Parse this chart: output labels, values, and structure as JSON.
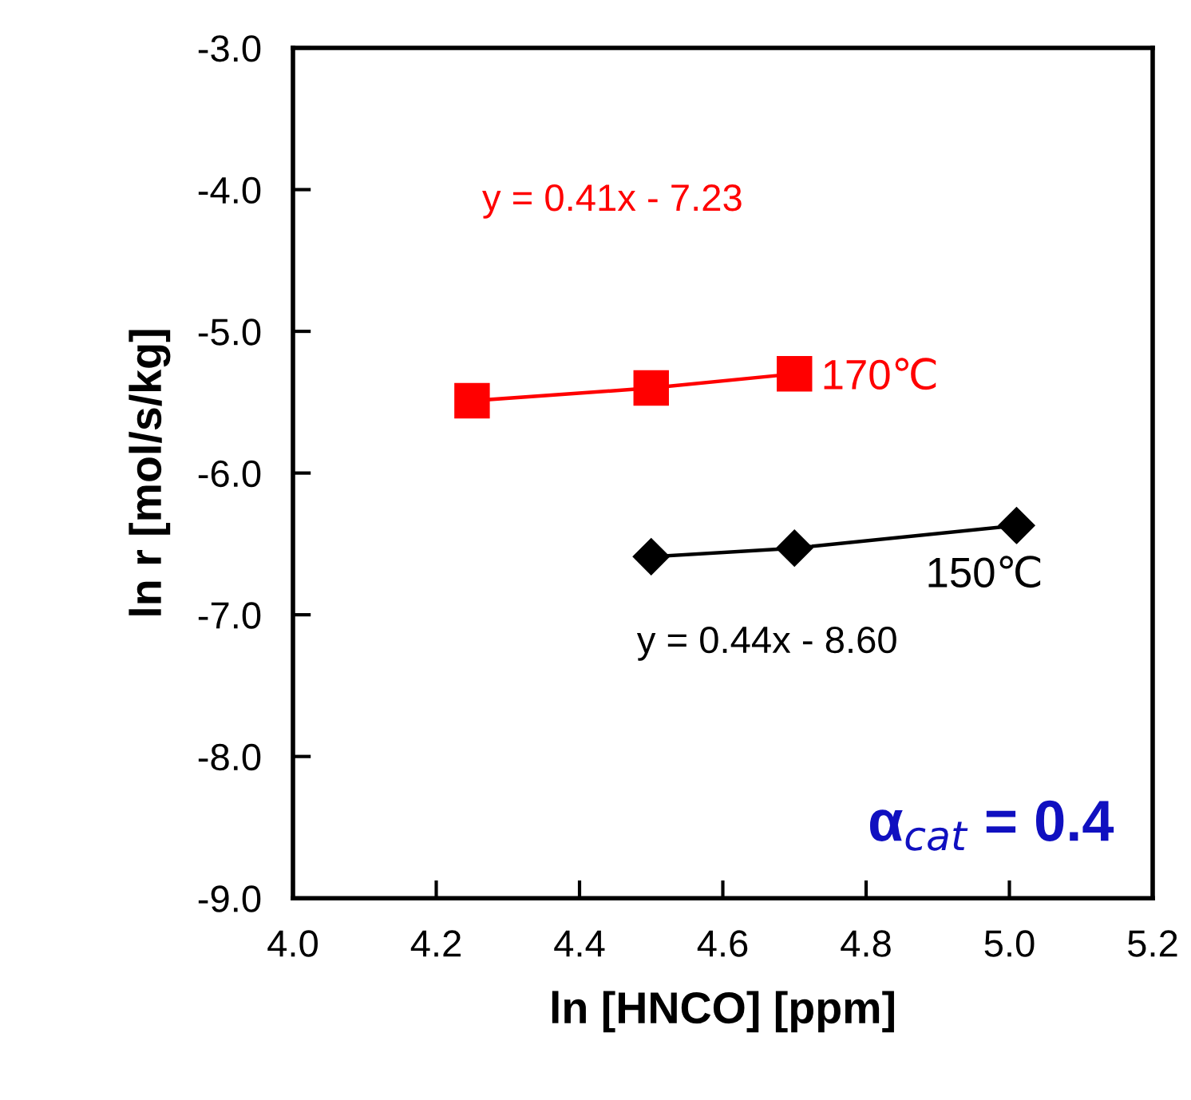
{
  "chart_data": {
    "type": "line",
    "xlabel": "ln [HNCO] [ppm]",
    "ylabel": "ln r [mol/s/kg]",
    "xlim": [
      4.0,
      5.2
    ],
    "xticks": [
      {
        "value": 4.0,
        "label": "4.0"
      },
      {
        "value": 4.2,
        "label": "4.2"
      },
      {
        "value": 4.4,
        "label": "4.4"
      },
      {
        "value": 4.6,
        "label": "4.6"
      },
      {
        "value": 4.8,
        "label": "4.8"
      },
      {
        "value": 5.0,
        "label": "5.0"
      },
      {
        "value": 5.2,
        "label": "5.2"
      }
    ],
    "ylim": [
      -9.0,
      -3.0
    ],
    "yticks": [
      {
        "value": -9.0,
        "label": "-9.0"
      },
      {
        "value": -8.0,
        "label": "-8.0"
      },
      {
        "value": -7.0,
        "label": "-7.0"
      },
      {
        "value": -6.0,
        "label": "-6.0"
      },
      {
        "value": -5.0,
        "label": "-5.0"
      },
      {
        "value": -4.0,
        "label": "-4.0"
      },
      {
        "value": -3.0,
        "label": "-3.0"
      }
    ],
    "grid": false,
    "legend": false,
    "line_style": "solid",
    "series": [
      {
        "name": "170℃",
        "color": "#ff0000",
        "marker": "square",
        "x": [
          4.25,
          4.5,
          4.7
        ],
        "values": [
          -5.49,
          -5.4,
          -5.3
        ]
      },
      {
        "name": "150℃",
        "color": "#000000",
        "marker": "diamond",
        "x": [
          4.5,
          4.7,
          5.01
        ],
        "values": [
          -6.59,
          -6.53,
          -6.37
        ]
      }
    ],
    "annotations": [
      "y = 0.41x - 7.23",
      "y = 0.44x - 8.60",
      "α$_{cat}$ = 0.4"
    ]
  }
}
